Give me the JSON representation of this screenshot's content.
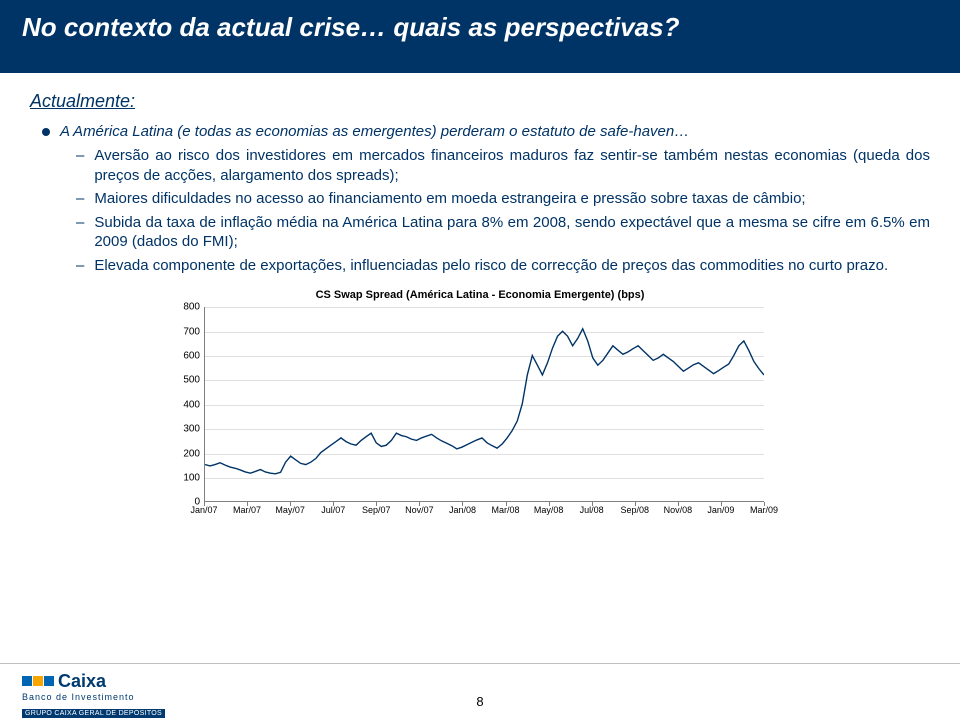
{
  "title": "No contexto da actual crise… quais as perspectivas?",
  "subheading": "Actualmente:",
  "bullet_l1": "A América Latina (e todas as economias as emergentes) perderam o estatuto de safe-haven…",
  "bullets_l2": [
    "Aversão ao risco dos investidores em mercados financeiros maduros faz sentir-se também nestas economias (queda dos preços de acções, alargamento dos spreads);",
    "Maiores dificuldades no acesso ao financiamento em moeda estrangeira e pressão sobre taxas de câmbio;",
    "Subida da taxa de inflação média na América Latina para 8% em 2008, sendo expectável que a mesma se cifre em 6.5% em 2009 (dados do FMI);",
    "Elevada componente de exportações, influenciadas pelo risco de correcção de preços das commodities no curto prazo."
  ],
  "chart": {
    "title": "CS Swap Spread (América Latina - Economia Emergente) (bps)",
    "type": "line",
    "ylim": [
      0,
      800
    ],
    "ytick_step": 100,
    "xlabels": [
      "Jan/07",
      "Mar/07",
      "May/07",
      "Jul/07",
      "Sep/07",
      "Nov/07",
      "Jan/08",
      "Mar/08",
      "May/08",
      "Jul/08",
      "Sep/08",
      "Nov/08",
      "Jan/09",
      "Mar/09"
    ],
    "line_color": "#003366",
    "grid_color": "#e0e0e0",
    "axis_color": "#808080",
    "background_color": "#ffffff",
    "line_width": 1.4,
    "label_fontsize": 10,
    "title_fontsize": 11,
    "series": [
      150,
      145,
      150,
      158,
      148,
      140,
      135,
      128,
      120,
      115,
      122,
      130,
      120,
      115,
      112,
      118,
      160,
      185,
      170,
      155,
      150,
      160,
      175,
      200,
      215,
      230,
      245,
      260,
      245,
      235,
      230,
      250,
      265,
      280,
      240,
      225,
      230,
      250,
      280,
      270,
      265,
      255,
      250,
      260,
      268,
      275,
      260,
      248,
      238,
      228,
      215,
      222,
      232,
      242,
      252,
      260,
      240,
      228,
      218,
      235,
      260,
      290,
      330,
      400,
      520,
      600,
      560,
      520,
      570,
      630,
      680,
      700,
      680,
      640,
      670,
      710,
      660,
      590,
      560,
      580,
      610,
      640,
      622,
      605,
      615,
      628,
      640,
      620,
      600,
      580,
      590,
      605,
      590,
      575,
      555,
      535,
      548,
      562,
      570,
      555,
      540,
      525,
      538,
      552,
      565,
      600,
      640,
      660,
      620,
      575,
      545,
      520
    ]
  },
  "logo": {
    "name": "Caixa",
    "sub": "Banco de Investimento",
    "tag": "GRUPO CAIXA GERAL DE DEPÓSITOS",
    "squares": [
      "#0066b3",
      "#f7a600",
      "#0066b3"
    ]
  },
  "page_number": "8"
}
